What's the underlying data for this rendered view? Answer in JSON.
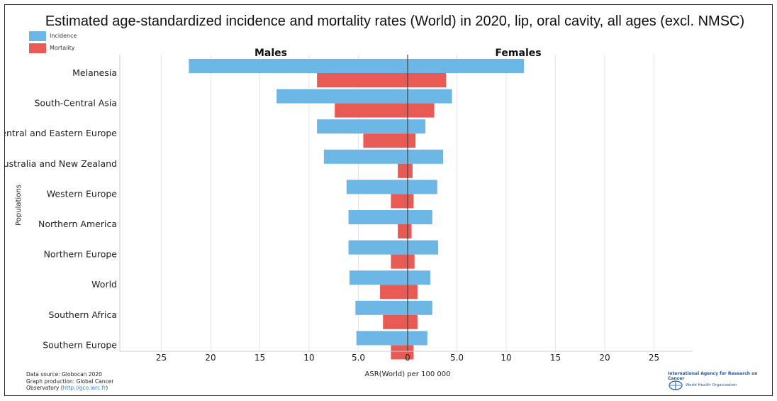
{
  "chart_data": {
    "type": "bar",
    "orientation": "horizontal",
    "layout": "back-to-back",
    "title": "Estimated age-standardized incidence and mortality rates (World) in 2020, lip, oral cavity, all ages (excl. NMSC)",
    "xlabel": "ASR(World) per 100 000",
    "ylabel": "Populations",
    "left_panel_label": "Males",
    "right_panel_label": "Females",
    "xlim": [
      -28,
      28
    ],
    "x_ticks": [
      25,
      20,
      15,
      10,
      "5.0",
      0,
      "5.0",
      10,
      15,
      20,
      25
    ],
    "x_tick_values": [
      -25,
      -20,
      -15,
      -10,
      -5,
      0,
      5,
      10,
      15,
      20,
      25
    ],
    "grid": "vertical",
    "categories": [
      "Melanesia",
      "South-Central Asia",
      "Central and Eastern Europe",
      "Australia and New Zealand",
      "Western Europe",
      "Northern America",
      "Northern Europe",
      "World",
      "Southern Africa",
      "Southern Europe"
    ],
    "series": [
      {
        "name": "Incidence",
        "color": "#6cb7e6",
        "males": [
          22.2,
          13.3,
          9.2,
          8.5,
          6.2,
          6.0,
          6.0,
          5.9,
          5.3,
          5.2
        ],
        "females": [
          11.8,
          4.5,
          1.8,
          3.6,
          3.0,
          2.5,
          3.1,
          2.3,
          2.5,
          2.0
        ]
      },
      {
        "name": "Mortality",
        "color": "#e85b55",
        "males": [
          9.2,
          7.4,
          4.5,
          1.0,
          1.7,
          1.0,
          1.7,
          2.8,
          2.5,
          1.7
        ],
        "females": [
          3.9,
          2.7,
          0.8,
          0.5,
          0.6,
          0.4,
          0.7,
          1.0,
          1.0,
          0.6
        ]
      }
    ],
    "legend_position": "top-left"
  },
  "footer": {
    "source_line1": "Data source: Globocan 2020",
    "source_line2": "Graph production: Global Cancer",
    "source_line3_prefix": "Observatory (",
    "source_link": "http://gco.iarc.fr",
    "source_line3_suffix": ")",
    "iarc": "International Agency for Research on Cancer",
    "who": "World Health Organization"
  }
}
